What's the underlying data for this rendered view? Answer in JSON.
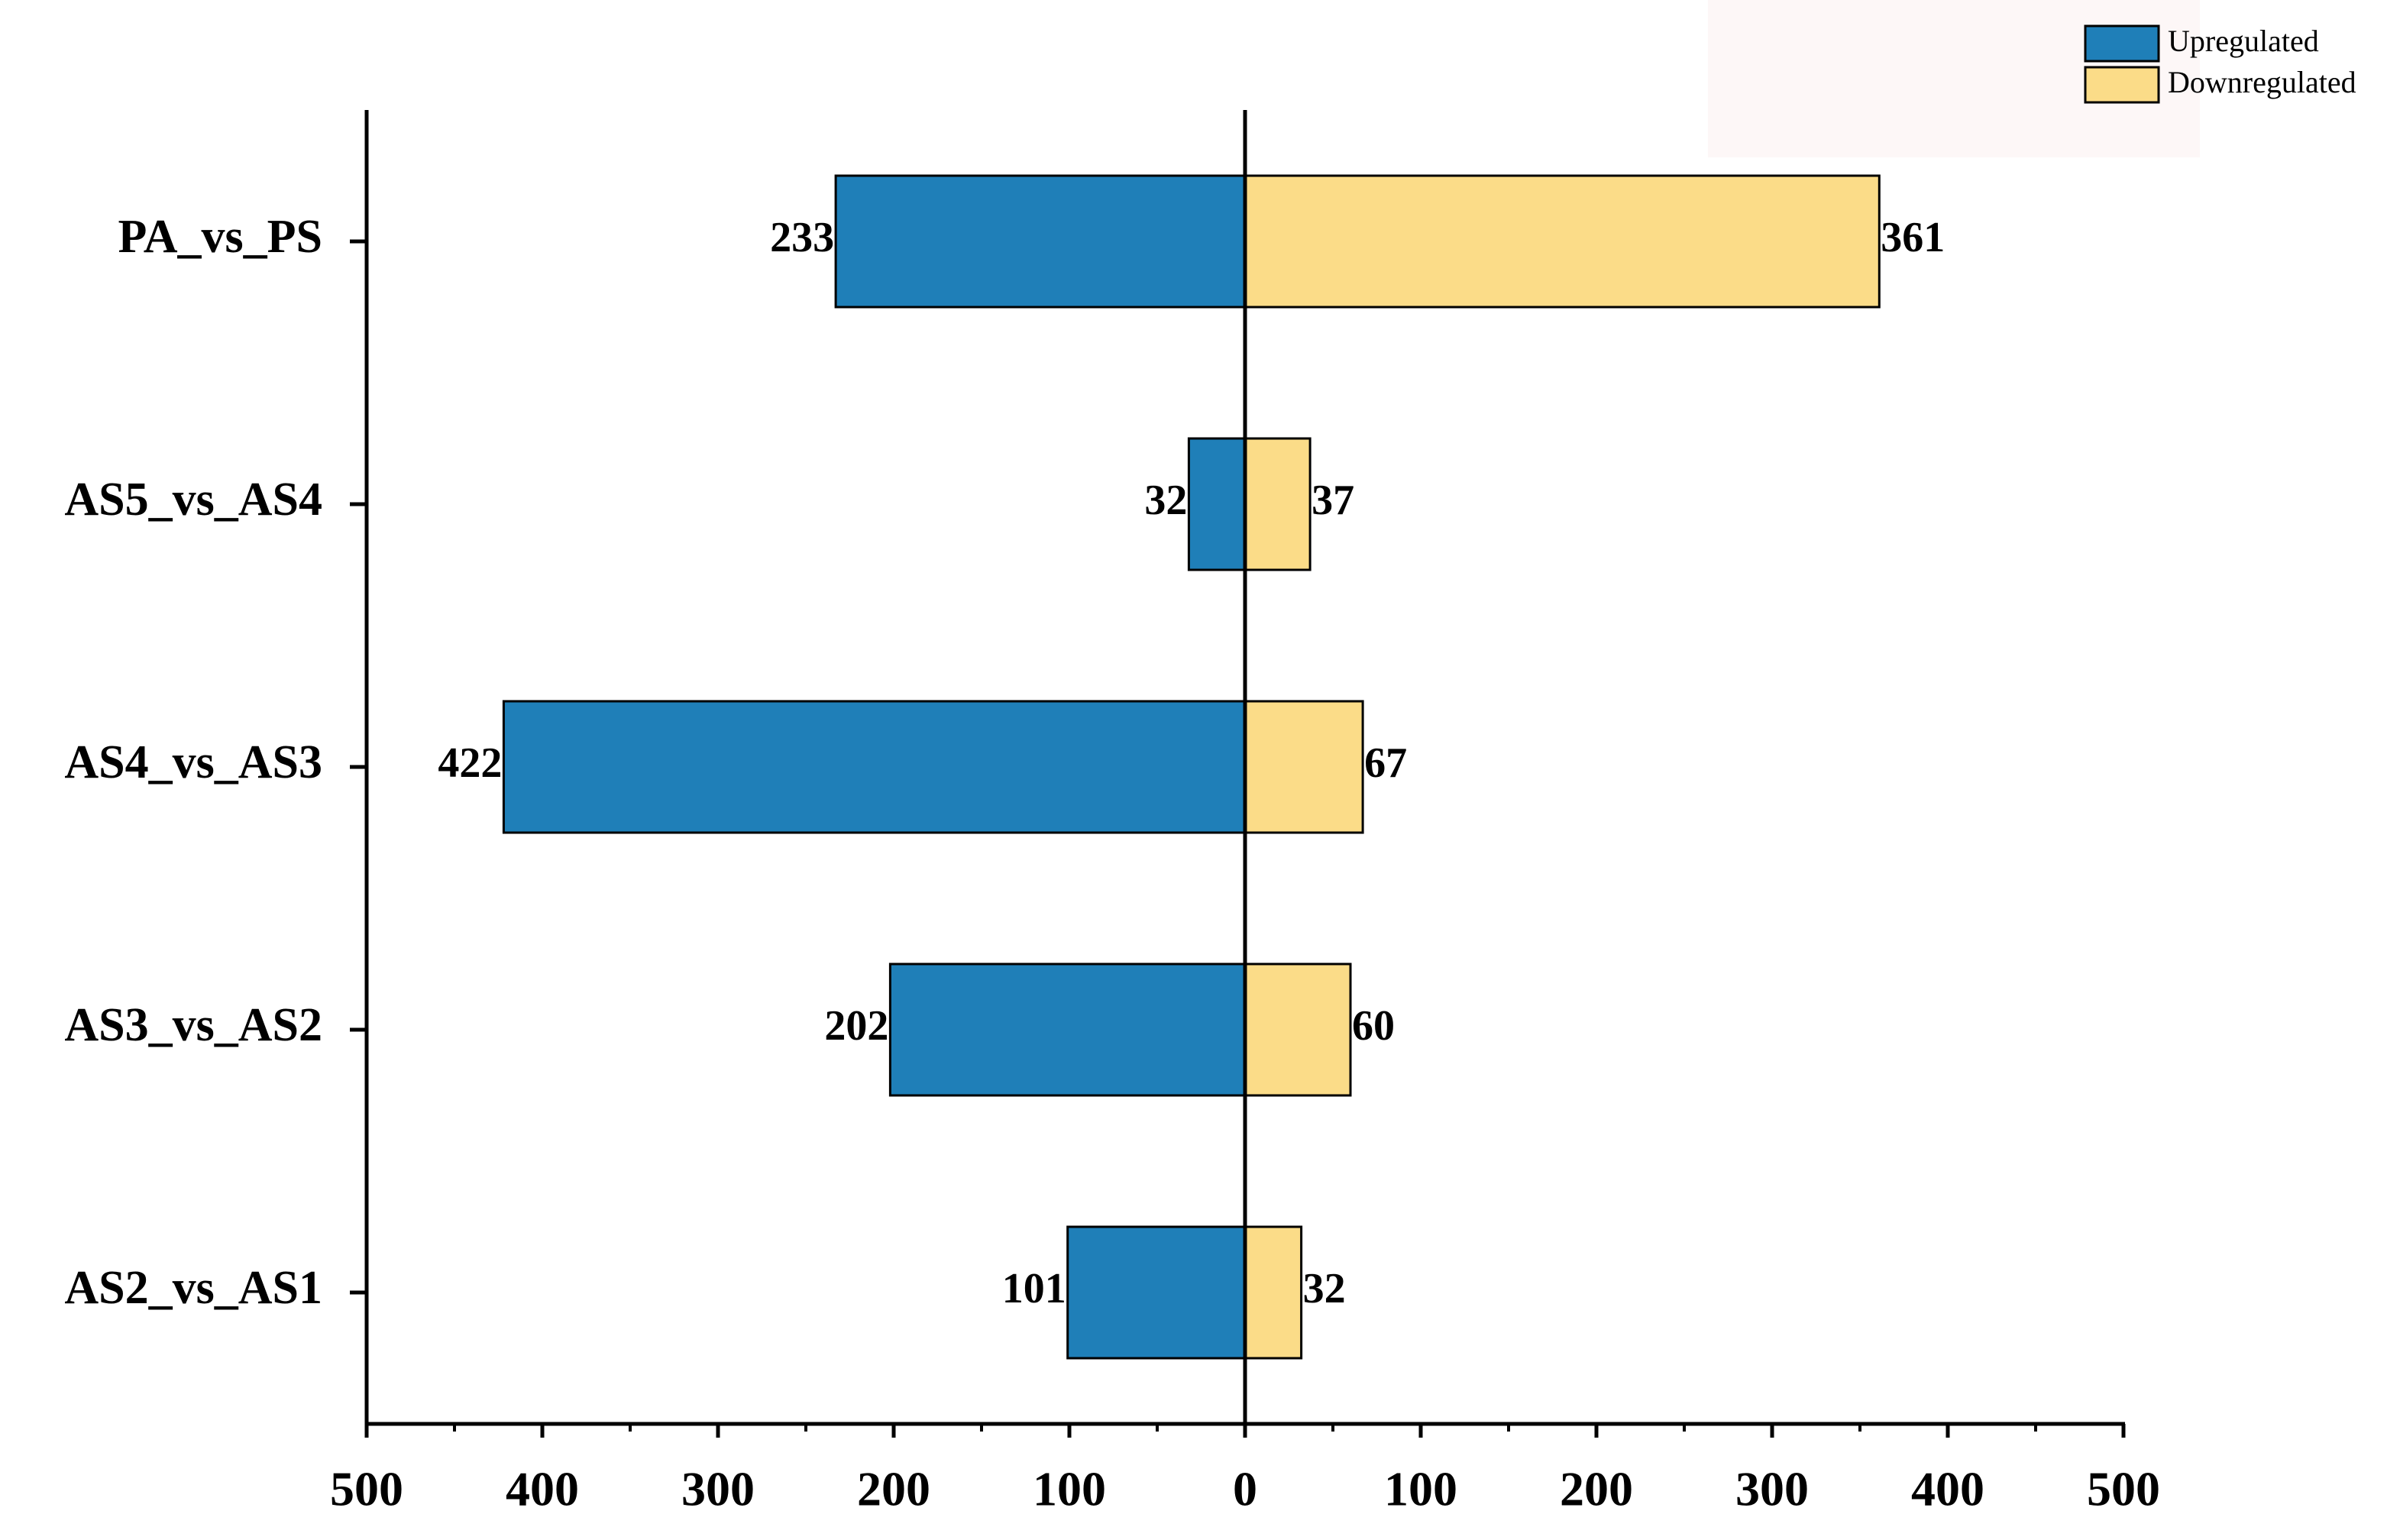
{
  "chart_data": {
    "type": "diverging-bar",
    "categories": [
      "PA_vs_PS",
      "AS5_vs_AS4",
      "AS4_vs_AS3",
      "AS3_vs_AS2",
      "AS2_vs_AS1"
    ],
    "series": [
      {
        "name": "Upregulated",
        "color": "#1f7fb8",
        "side": "left",
        "values": [
          233,
          32,
          422,
          202,
          101
        ]
      },
      {
        "name": "Downregulated",
        "color": "#fbdc88",
        "side": "right",
        "values": [
          361,
          37,
          67,
          60,
          32
        ]
      }
    ],
    "xlim": [
      -500,
      500
    ],
    "xticks": [
      {
        "value": -500,
        "label": "500"
      },
      {
        "value": -400,
        "label": "400"
      },
      {
        "value": -300,
        "label": "300"
      },
      {
        "value": -200,
        "label": "200"
      },
      {
        "value": -100,
        "label": "100"
      },
      0,
      100,
      200,
      300,
      400,
      500
    ],
    "legend": "upper right"
  }
}
